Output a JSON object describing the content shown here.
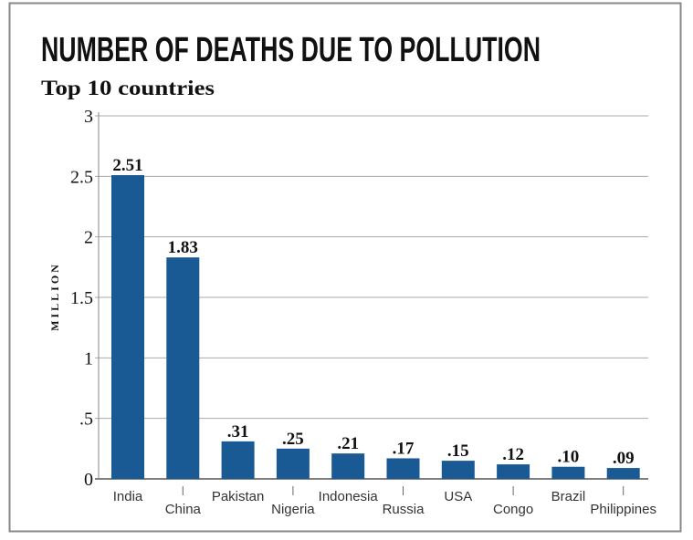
{
  "chart_data": {
    "type": "bar",
    "title": "NUMBER OF DEATHS DUE TO POLLUTION",
    "subtitle": "Top 10 countries",
    "ylabel": "MILLION",
    "xlabel": "",
    "ylim": [
      0,
      3
    ],
    "yticks": [
      0,
      0.5,
      1,
      1.5,
      2,
      2.5,
      3
    ],
    "ytick_labels": [
      "0",
      ".5",
      "1",
      "1.5",
      "2",
      "2.5",
      "3"
    ],
    "grid": true,
    "bar_color": "#1a5a94",
    "categories": [
      "India",
      "China",
      "Pakistan",
      "Nigeria",
      "Indonesia",
      "Russia",
      "USA",
      "Congo",
      "Brazil",
      "Philippines"
    ],
    "values": [
      2.51,
      1.83,
      0.31,
      0.25,
      0.21,
      0.17,
      0.15,
      0.12,
      0.1,
      0.09
    ],
    "data_labels": [
      "2.51",
      "1.83",
      ".31",
      ".25",
      ".21",
      ".17",
      ".15",
      ".12",
      ".10",
      ".09"
    ]
  }
}
